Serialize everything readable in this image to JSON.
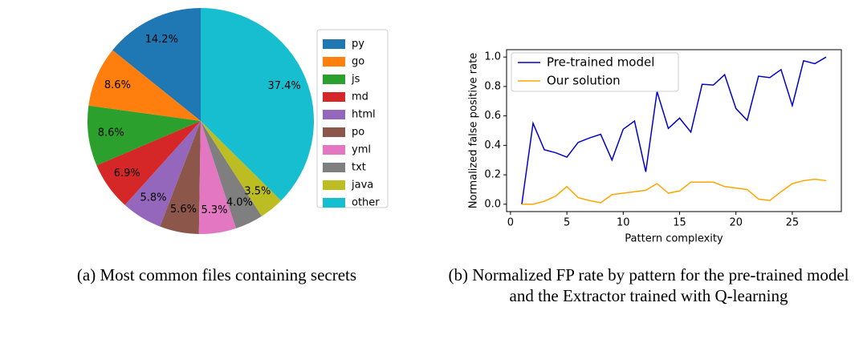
{
  "chart_data": [
    {
      "type": "pie",
      "caption": "(a) Most common files containing secrets",
      "categories": [
        "py",
        "go",
        "js",
        "md",
        "html",
        "po",
        "yml",
        "txt",
        "java",
        "other"
      ],
      "values": [
        14.2,
        8.6,
        8.6,
        6.9,
        5.8,
        5.6,
        5.3,
        4.0,
        3.5,
        37.4
      ],
      "value_labels": [
        "14.2%",
        "8.6%",
        "8.6%",
        "6.9%",
        "5.8%",
        "5.6%",
        "5.3%",
        "4.0%",
        "3.5%",
        "37.4%"
      ],
      "colors": [
        "#1f77b4",
        "#ff7f0e",
        "#2ca02c",
        "#d62728",
        "#9467bd",
        "#8c564b",
        "#e377c2",
        "#7f7f7f",
        "#bcbd22",
        "#17becf"
      ],
      "legend": "right"
    },
    {
      "type": "line",
      "caption": "(b) Normalized FP rate by pattern for the pre-trained model and the Extractor trained with Q-learning",
      "xlabel": "Pattern complexity",
      "ylabel": "Normalized false positive rate",
      "x": [
        1,
        2,
        3,
        4,
        5,
        6,
        7,
        8,
        9,
        10,
        11,
        12,
        13,
        14,
        15,
        16,
        17,
        18,
        19,
        20,
        21,
        22,
        23,
        24,
        25,
        26,
        27,
        28
      ],
      "series": [
        {
          "name": "Pre-trained model",
          "color": "#0000cc",
          "values": [
            0,
            0.55,
            0.37,
            0.35,
            0.32,
            0.42,
            0.45,
            0.475,
            0.3,
            0.51,
            0.565,
            0.22,
            0.765,
            0.515,
            0.585,
            0.49,
            0.815,
            0.81,
            0.88,
            0.65,
            0.57,
            0.87,
            0.86,
            0.915,
            0.67,
            0.975,
            0.955,
            1.0
          ]
        },
        {
          "name": "Our solution",
          "color": "#ffa500",
          "values": [
            0,
            0,
            0.02,
            0.055,
            0.12,
            0.045,
            0.025,
            0.01,
            0.065,
            0.075,
            0.085,
            0.095,
            0.14,
            0.075,
            0.09,
            0.15,
            0.15,
            0.15,
            0.12,
            0.11,
            0.1,
            0.035,
            0.025,
            0.085,
            0.14,
            0.16,
            0.17,
            0.16
          ]
        }
      ],
      "xlim": [
        -0.35,
        29.35
      ],
      "ylim": [
        -0.05,
        1.05
      ],
      "xticks": [
        0,
        5,
        10,
        15,
        20,
        25
      ],
      "yticks": [
        {
          "value": 0,
          "label": "0.0"
        },
        {
          "value": 0.2,
          "label": "0.2"
        },
        {
          "value": 0.4,
          "label": "0.4"
        },
        {
          "value": 0.6,
          "label": "0.6"
        },
        {
          "value": 0.8,
          "label": "0.8"
        },
        {
          "value": 1.0,
          "label": "1.0"
        }
      ],
      "legend": "upper left"
    }
  ]
}
